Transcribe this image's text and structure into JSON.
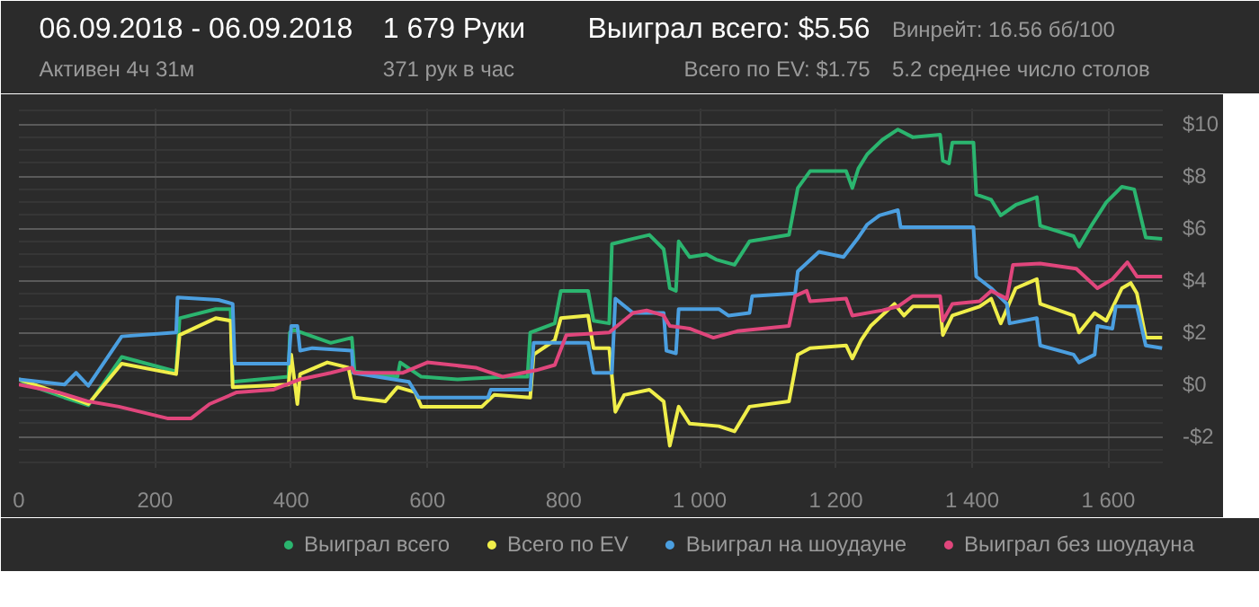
{
  "chart_data": {
    "type": "line",
    "title": "06.09.2018 - 06.09.2018",
    "subtitle": "Активен 4ч 31м",
    "annotations": [
      "1 679 Руки",
      "371 рук в час",
      "Выиграл всего: $5.56",
      "Всего по EV: $1.75",
      "Винрейт: 16.56 бб/100",
      "5.2 среднее число столов"
    ],
    "xlim": [
      0,
      1680
    ],
    "ylim": [
      -3.2,
      10.6
    ],
    "xticks": [
      0,
      200,
      400,
      600,
      800,
      {
        "value": 1000,
        "label": "1 000"
      },
      {
        "value": 1200,
        "label": "1 200"
      },
      {
        "value": 1400,
        "label": "1 400"
      },
      {
        "value": 1600,
        "label": "1 600"
      }
    ],
    "yticks": [
      {
        "value": -2,
        "label": "-$2"
      },
      {
        "value": 0,
        "label": "$0"
      },
      {
        "value": 2,
        "label": "$2"
      },
      {
        "value": 4,
        "label": "$4"
      },
      {
        "value": 6,
        "label": "$6"
      },
      {
        "value": 8,
        "label": "$8"
      },
      {
        "value": 10,
        "label": "$10"
      }
    ],
    "grid": true,
    "legend": "bottom",
    "line_style": "solid",
    "series": [
      {
        "name": "Выиграл всего",
        "color": "#2bb56f",
        "x": [
          0,
          13,
          67,
          102,
          151,
          231,
          236,
          289,
          311,
          314,
          396,
          398,
          404,
          458,
          489,
          493,
          556,
          560,
          591,
          644,
          716,
          747,
          751,
          787,
          796,
          836,
          844,
          867,
          871,
          902,
          926,
          947,
          956,
          965,
          969,
          985,
          1010,
          1024,
          1051,
          1073,
          1131,
          1144,
          1162,
          1215,
          1224,
          1233,
          1246,
          1268,
          1291,
          1313,
          1353,
          1357,
          1366,
          1371,
          1402,
          1406,
          1428,
          1442,
          1464,
          1495,
          1500,
          1549,
          1557,
          1575,
          1597,
          1620,
          1638,
          1655,
          1679
        ],
        "values": [
          0.2,
          0,
          -0.5,
          -0.8,
          1.06,
          0.5,
          2.55,
          2.9,
          2.9,
          0.1,
          0.3,
          2.0,
          2.1,
          1.6,
          1.8,
          0.5,
          0.3,
          0.85,
          0.3,
          0.2,
          0.3,
          0.3,
          2.0,
          2.35,
          3.6,
          3.6,
          2.45,
          2.35,
          5.4,
          5.6,
          5.75,
          5.2,
          3.7,
          3.6,
          5.5,
          4.9,
          5.0,
          4.8,
          4.6,
          5.5,
          5.75,
          7.55,
          8.2,
          8.2,
          7.55,
          8.3,
          8.85,
          9.4,
          9.8,
          9.5,
          9.6,
          8.6,
          8.5,
          9.3,
          9.3,
          7.3,
          7.1,
          6.5,
          6.9,
          7.2,
          6.1,
          5.7,
          5.3,
          6.1,
          7.0,
          7.6,
          7.5,
          5.65,
          5.6
        ]
      },
      {
        "name": "Всего по EV",
        "color": "#f0ee4a",
        "x": [
          0,
          67,
          102,
          151,
          231,
          236,
          289,
          311,
          314,
          396,
          400,
          409,
          413,
          453,
          484,
          493,
          538,
          556,
          582,
          591,
          680,
          698,
          751,
          756,
          787,
          796,
          836,
          844,
          867,
          876,
          889,
          926,
          947,
          956,
          969,
          985,
          1028,
          1051,
          1073,
          1131,
          1144,
          1162,
          1215,
          1224,
          1237,
          1251,
          1286,
          1300,
          1313,
          1353,
          1357,
          1371,
          1411,
          1428,
          1442,
          1464,
          1495,
          1500,
          1549,
          1557,
          1580,
          1597,
          1620,
          1633,
          1642,
          1655,
          1679
        ],
        "values": [
          0.2,
          -0.4,
          -0.75,
          0.8,
          0.4,
          1.9,
          2.55,
          2.45,
          -0.1,
          0,
          1.15,
          -0.75,
          0.4,
          0.85,
          0.65,
          -0.5,
          -0.65,
          -0.1,
          -0.3,
          -0.85,
          -0.85,
          -0.4,
          -0.5,
          1.15,
          1.7,
          2.55,
          2.65,
          1.4,
          1.4,
          -1.05,
          -0.4,
          -0.2,
          -0.65,
          -2.35,
          -0.85,
          -1.5,
          -1.6,
          -1.8,
          -0.85,
          -0.65,
          1.15,
          1.4,
          1.5,
          1.0,
          1.7,
          2.25,
          3.1,
          2.65,
          3.0,
          3.0,
          1.9,
          2.65,
          3.0,
          3.3,
          2.35,
          3.7,
          4.05,
          3.1,
          2.65,
          2.0,
          2.75,
          2.45,
          3.7,
          3.9,
          3.5,
          1.8,
          1.8
        ]
      },
      {
        "name": "Выиграл на шоудауне",
        "color": "#4b9fe0",
        "x": [
          0,
          67,
          84,
          102,
          151,
          231,
          233,
          293,
          314,
          317,
          396,
          400,
          409,
          413,
          431,
          489,
          491,
          573,
          587,
          689,
          693,
          751,
          756,
          836,
          844,
          871,
          876,
          902,
          947,
          951,
          965,
          969,
          1028,
          1042,
          1073,
          1077,
          1140,
          1144,
          1175,
          1211,
          1233,
          1246,
          1264,
          1291,
          1295,
          1402,
          1406,
          1428,
          1451,
          1455,
          1495,
          1500,
          1549,
          1557,
          1580,
          1584,
          1606,
          1611,
          1642,
          1655,
          1679
        ],
        "values": [
          0.2,
          0,
          0.45,
          -0.05,
          1.85,
          2.0,
          3.35,
          3.25,
          3.1,
          0.8,
          0.8,
          2.25,
          2.25,
          1.3,
          1.4,
          1.3,
          0.45,
          0.1,
          -0.5,
          -0.5,
          -0.2,
          -0.2,
          1.6,
          1.6,
          0.45,
          0.45,
          3.3,
          2.75,
          2.75,
          1.3,
          1.2,
          2.9,
          2.9,
          2.65,
          2.75,
          3.4,
          3.5,
          4.35,
          5.1,
          4.9,
          5.65,
          6.15,
          6.5,
          6.7,
          6.05,
          6.05,
          4.15,
          3.7,
          3.1,
          2.35,
          2.55,
          1.5,
          1.15,
          0.85,
          1.15,
          2.25,
          2.15,
          3.0,
          3.0,
          1.5,
          1.4
        ]
      },
      {
        "name": "Выиграл без шоудауна",
        "color": "#e0467c",
        "x": [
          0,
          58,
          102,
          147,
          218,
          253,
          280,
          320,
          373,
          413,
          458,
          489,
          493,
          564,
          600,
          671,
          711,
          760,
          787,
          804,
          867,
          902,
          922,
          947,
          956,
          985,
          1020,
          1055,
          1131,
          1140,
          1157,
          1162,
          1215,
          1224,
          1268,
          1291,
          1313,
          1353,
          1357,
          1371,
          1411,
          1428,
          1451,
          1460,
          1500,
          1553,
          1584,
          1606,
          1628,
          1642,
          1679
        ],
        "values": [
          0,
          -0.3,
          -0.65,
          -0.85,
          -1.3,
          -1.3,
          -0.75,
          -0.3,
          -0.2,
          0.2,
          0.45,
          0.65,
          0.45,
          0.45,
          0.85,
          0.65,
          0.3,
          0.55,
          0.75,
          1.9,
          2.0,
          2.75,
          2.85,
          2.65,
          2.25,
          2.15,
          1.8,
          2.05,
          2.25,
          3.4,
          3.6,
          3.2,
          3.3,
          2.65,
          2.85,
          3.0,
          3.4,
          3.4,
          2.45,
          3.1,
          3.2,
          3.6,
          3.3,
          4.6,
          4.65,
          4.45,
          3.7,
          4.05,
          4.7,
          4.15,
          4.15
        ]
      }
    ]
  }
}
